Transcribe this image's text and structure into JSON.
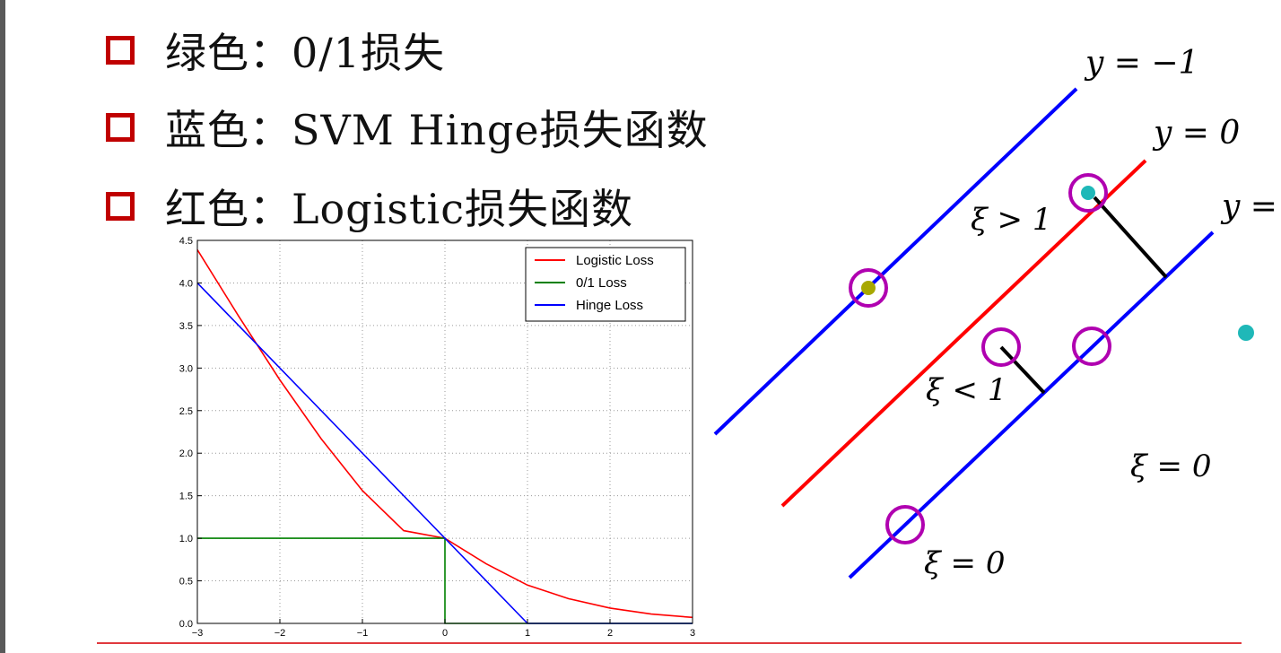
{
  "bullets": [
    {
      "label": "绿色：",
      "text": "0/1损失"
    },
    {
      "label": "蓝色：",
      "text": " SVM Hinge损失函数"
    },
    {
      "label": "红色：",
      "text": "Logistic损失函数"
    }
  ],
  "colors": {
    "accent": "#c00000",
    "logistic": "#ff0000",
    "zero_one": "#008000",
    "hinge": "#0000ff",
    "rule": "#e0393e"
  },
  "chart_data": {
    "type": "line",
    "title": "",
    "xlabel": "",
    "ylabel": "",
    "xlim": [
      -3,
      3
    ],
    "ylim": [
      0,
      4.5
    ],
    "grid": true,
    "legend_position": "top-right",
    "x_ticks": [
      "−3",
      "−2",
      "−1",
      "0",
      "1",
      "2",
      "3"
    ],
    "y_ticks": [
      "0.0",
      "0.5",
      "1.0",
      "1.5",
      "2.0",
      "2.5",
      "3.0",
      "3.5",
      "4.0",
      "4.5"
    ],
    "series": [
      {
        "name": "Logistic Loss",
        "color": "#ff0000",
        "x": [
          -3,
          -2.5,
          -2,
          -1.5,
          -1,
          -0.5,
          0,
          0.5,
          1,
          1.5,
          2,
          2.5,
          3
        ],
        "y": [
          4.39,
          3.61,
          2.86,
          2.17,
          1.56,
          1.09,
          1.0,
          0.7,
          0.45,
          0.29,
          0.18,
          0.11,
          0.07
        ]
      },
      {
        "name": "0/1 Loss",
        "color": "#008000",
        "x": [
          -3,
          0,
          0,
          3
        ],
        "y": [
          1,
          1,
          0,
          0
        ]
      },
      {
        "name": "Hinge Loss",
        "color": "#0000ff",
        "x": [
          -3,
          1,
          3
        ],
        "y": [
          4,
          0,
          0
        ]
      }
    ]
  },
  "diagram": {
    "labels": {
      "y_neg1": "y = −1",
      "y_0": "y = 0",
      "y_1_partial": "y =",
      "xi_gt_1": "ξ > 1",
      "xi_lt_1": "ξ < 1",
      "xi_eq_0_right": "ξ = 0",
      "xi_eq_0_bottom": "ξ = 0"
    }
  }
}
